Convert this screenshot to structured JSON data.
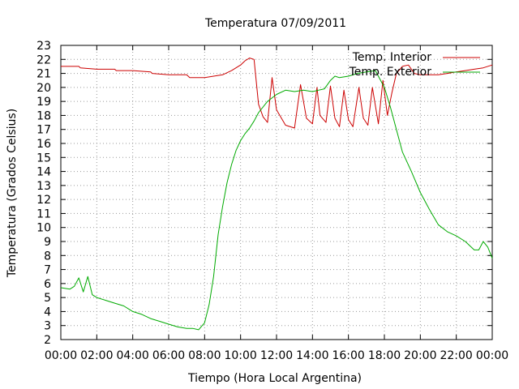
{
  "chart_data": {
    "type": "line",
    "title": "Temperatura 07/09/2011",
    "xlabel": "Tiempo (Hora Local Argentina)",
    "ylabel": "Temperatura (Grados Celsius)",
    "xlim": [
      "00:00",
      "24:00"
    ],
    "ylim": [
      2,
      23
    ],
    "grid": true,
    "legend_position": "top-right",
    "x_tick_labels": [
      "00:00",
      "02:00",
      "04:00",
      "06:00",
      "08:00",
      "10:00",
      "12:00",
      "14:00",
      "16:00",
      "18:00",
      "20:00",
      "22:00",
      "00:00"
    ],
    "y_tick_labels": [
      "2",
      "3",
      "4",
      "5",
      "6",
      "7",
      "8",
      "9",
      "10",
      "11",
      "12",
      "13",
      "14",
      "15",
      "16",
      "17",
      "18",
      "19",
      "20",
      "21",
      "22",
      "23"
    ],
    "series": [
      {
        "name": "Temp. Interior",
        "color": "#cc0000",
        "x": [
          "00:00",
          "01:00",
          "01:05",
          "02:00",
          "03:00",
          "03:05",
          "04:00",
          "05:00",
          "05:05",
          "06:00",
          "07:00",
          "07:10",
          "08:00",
          "08:30",
          "09:00",
          "09:30",
          "10:00",
          "10:15",
          "10:30",
          "10:45",
          "11:00",
          "11:15",
          "11:30",
          "11:45",
          "12:00",
          "12:30",
          "13:00",
          "13:20",
          "13:40",
          "14:00",
          "14:15",
          "14:25",
          "14:45",
          "15:00",
          "15:15",
          "15:30",
          "15:45",
          "16:00",
          "16:15",
          "16:35",
          "16:50",
          "17:05",
          "17:20",
          "17:40",
          "17:55",
          "18:10",
          "18:25",
          "18:40",
          "19:00",
          "19:20",
          "19:40",
          "20:00",
          "20:30",
          "21:00",
          "21:30",
          "22:00",
          "22:30",
          "23:00",
          "23:30",
          "24:00"
        ],
        "y": [
          21.5,
          21.5,
          21.4,
          21.3,
          21.3,
          21.2,
          21.2,
          21.1,
          21.0,
          20.9,
          20.9,
          20.7,
          20.7,
          20.8,
          20.9,
          21.2,
          21.6,
          21.9,
          22.1,
          22.0,
          18.8,
          17.9,
          17.5,
          20.7,
          18.4,
          17.3,
          17.1,
          20.2,
          17.8,
          17.4,
          20.0,
          18.0,
          17.5,
          20.1,
          17.8,
          17.2,
          19.8,
          17.7,
          17.2,
          20.0,
          17.8,
          17.3,
          20.0,
          17.4,
          20.5,
          18.0,
          19.6,
          21.0,
          21.5,
          21.6,
          21.0,
          20.9,
          20.9,
          20.9,
          21.0,
          21.1,
          21.2,
          21.3,
          21.4,
          21.6
        ]
      },
      {
        "name": "Temp. Exterior",
        "color": "#00aa00",
        "x": [
          "00:00",
          "00:30",
          "00:45",
          "01:00",
          "01:15",
          "01:30",
          "01:45",
          "02:00",
          "02:30",
          "03:00",
          "03:30",
          "04:00",
          "04:30",
          "05:00",
          "05:30",
          "06:00",
          "06:30",
          "07:00",
          "07:20",
          "07:40",
          "08:00",
          "08:15",
          "08:30",
          "08:45",
          "09:00",
          "09:15",
          "09:30",
          "09:45",
          "10:00",
          "10:15",
          "10:30",
          "10:45",
          "11:00",
          "11:30",
          "12:00",
          "12:30",
          "13:00",
          "13:30",
          "14:00",
          "14:20",
          "14:40",
          "15:00",
          "15:15",
          "15:30",
          "16:00",
          "16:30",
          "17:00",
          "17:30",
          "18:00",
          "18:20",
          "18:40",
          "19:00",
          "19:30",
          "20:00",
          "20:30",
          "21:00",
          "21:30",
          "22:00",
          "22:30",
          "23:00",
          "23:15",
          "23:30",
          "23:45",
          "24:00"
        ],
        "y": [
          5.7,
          5.6,
          5.8,
          6.4,
          5.4,
          6.5,
          5.2,
          5.0,
          4.8,
          4.6,
          4.4,
          4.0,
          3.8,
          3.5,
          3.3,
          3.1,
          2.9,
          2.8,
          2.8,
          2.7,
          3.2,
          4.5,
          6.5,
          9.5,
          11.5,
          13.2,
          14.5,
          15.5,
          16.2,
          16.7,
          17.1,
          17.6,
          18.2,
          19.0,
          19.5,
          19.8,
          19.7,
          19.8,
          19.7,
          19.8,
          19.9,
          20.5,
          20.8,
          20.7,
          20.8,
          21.0,
          21.1,
          21.2,
          20.0,
          18.6,
          17.0,
          15.4,
          14.0,
          12.5,
          11.3,
          10.2,
          9.7,
          9.4,
          9.0,
          8.4,
          8.4,
          9.0,
          8.6,
          7.8
        ]
      }
    ]
  }
}
